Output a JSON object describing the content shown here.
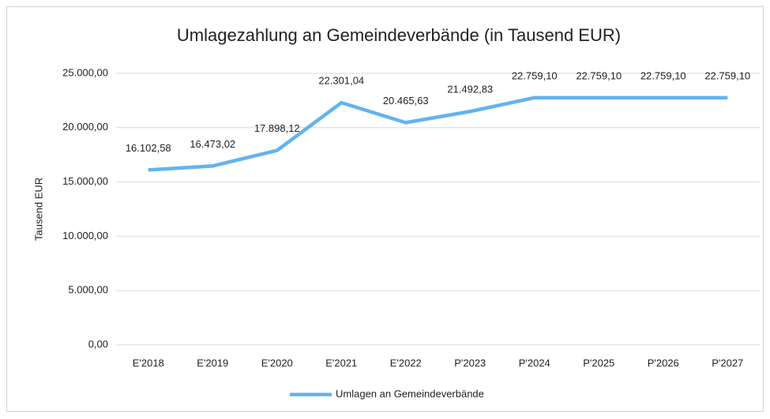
{
  "chart_data": {
    "type": "line",
    "title": "Umlagezahlung an Gemeindeverbände (in Tausend EUR)",
    "ylabel": "Tausend EUR",
    "categories": [
      "E'2018",
      "E'2019",
      "E'2020",
      "E'2021",
      "E'2022",
      "P'2023",
      "P'2024",
      "P'2025",
      "P'2026",
      "P'2027"
    ],
    "series": [
      {
        "name": "Umlagen an Gemeindeverbände",
        "color": "#63b3ef",
        "values": [
          16102.58,
          16473.02,
          17898.12,
          22301.04,
          20465.63,
          21492.83,
          22759.1,
          22759.1,
          22759.1,
          22759.1
        ],
        "value_labels": [
          "16.102,58",
          "16.473,02",
          "17.898,12",
          "22.301,04",
          "20.465,63",
          "21.492,83",
          "22.759,10",
          "22.759,10",
          "22.759,10",
          "22.759,10"
        ]
      }
    ],
    "ylim": [
      0,
      25000
    ],
    "yticks": [
      {
        "value": 0,
        "label": "0,00"
      },
      {
        "value": 5000,
        "label": "5.000,00"
      },
      {
        "value": 10000,
        "label": "10.000,00"
      },
      {
        "value": 15000,
        "label": "15.000,00"
      },
      {
        "value": 20000,
        "label": "20.000,00"
      },
      {
        "value": 25000,
        "label": "25.000,00"
      }
    ],
    "grid": true,
    "legend": "bottom"
  }
}
